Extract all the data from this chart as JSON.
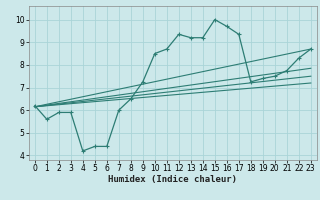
{
  "title": "",
  "xlabel": "Humidex (Indice chaleur)",
  "ylabel": "",
  "bg_color": "#cce8ea",
  "grid_color": "#aad4d8",
  "line_color": "#2d7d74",
  "xlim": [
    -0.5,
    23.5
  ],
  "ylim": [
    3.8,
    10.6
  ],
  "xticks": [
    0,
    1,
    2,
    3,
    4,
    5,
    6,
    7,
    8,
    9,
    10,
    11,
    12,
    13,
    14,
    15,
    16,
    17,
    18,
    19,
    20,
    21,
    22,
    23
  ],
  "yticks": [
    4,
    5,
    6,
    7,
    8,
    9,
    10
  ],
  "main_x": [
    0,
    1,
    2,
    3,
    4,
    5,
    6,
    7,
    8,
    9,
    10,
    11,
    12,
    13,
    14,
    15,
    16,
    17,
    18,
    19,
    20,
    21,
    22,
    23
  ],
  "main_y": [
    6.2,
    5.6,
    5.9,
    5.9,
    4.2,
    4.4,
    4.4,
    6.0,
    6.5,
    7.25,
    8.5,
    8.7,
    9.35,
    9.2,
    9.2,
    10.0,
    9.7,
    9.35,
    7.25,
    7.4,
    7.5,
    7.75,
    8.3,
    8.7
  ],
  "line2_x": [
    0,
    23
  ],
  "line2_y": [
    6.15,
    8.7
  ],
  "line3_x": [
    0,
    23
  ],
  "line3_y": [
    6.15,
    7.85
  ],
  "line4_x": [
    0,
    23
  ],
  "line4_y": [
    6.15,
    7.5
  ],
  "line5_x": [
    0,
    23
  ],
  "line5_y": [
    6.15,
    7.2
  ]
}
